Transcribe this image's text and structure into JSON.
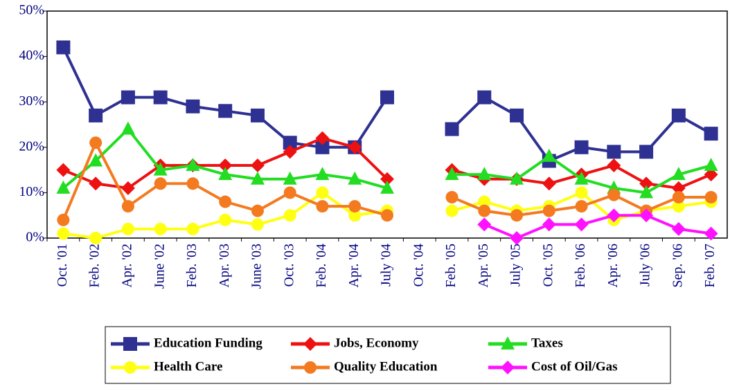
{
  "chart_data": {
    "type": "line",
    "categories": [
      "Oct. '01",
      "Feb. '02",
      "Apr. '02",
      "June '02",
      "Feb. '03",
      "Apr. '03",
      "June '03",
      "Oct. '03",
      "Feb. '04",
      "Apr. '04",
      "July '04",
      "Oct. '04",
      "Feb. '05",
      "Apr. '05",
      "July '05",
      "Oct. '05",
      "Feb. '06",
      "Apr. '06",
      "July '06",
      "Sep. '06",
      "Feb. '07"
    ],
    "ylim": [
      0,
      50
    ],
    "yticks": [
      {
        "value": 0,
        "label": "0%"
      },
      {
        "value": 10,
        "label": "10%"
      },
      {
        "value": 20,
        "label": "20%"
      },
      {
        "value": 30,
        "label": "30%"
      },
      {
        "value": 40,
        "label": "40%"
      },
      {
        "value": 50,
        "label": "50%"
      }
    ],
    "legend": "bottom",
    "series": [
      {
        "name": "Education Funding",
        "color": "#2e3192",
        "marker": "square",
        "values": [
          42,
          27,
          31,
          31,
          29,
          28,
          27,
          21,
          20,
          20,
          31,
          null,
          24,
          31,
          27,
          17,
          20,
          19,
          19,
          27,
          23
        ]
      },
      {
        "name": "Jobs, Economy",
        "color": "#ee1111",
        "marker": "diamond",
        "values": [
          15,
          12,
          11,
          16,
          16,
          16,
          16,
          19,
          22,
          20,
          13,
          null,
          15,
          13,
          13,
          12,
          14,
          16,
          12,
          11,
          14
        ]
      },
      {
        "name": "Taxes",
        "color": "#22dd22",
        "marker": "triangle",
        "values": [
          11,
          17,
          24,
          15,
          16,
          14,
          13,
          13,
          14,
          13,
          11,
          null,
          14,
          14,
          13,
          18,
          13,
          11,
          10,
          14,
          16
        ]
      },
      {
        "name": "Health Care",
        "color": "#ffff11",
        "marker": "circle",
        "values": [
          1,
          0,
          2,
          2,
          2,
          4,
          3,
          5,
          10,
          5,
          6,
          null,
          6,
          8,
          6,
          7,
          10,
          4,
          6,
          7,
          8
        ]
      },
      {
        "name": "Quality Education",
        "color": "#f47a20",
        "marker": "circle",
        "values": [
          4,
          21,
          7,
          12,
          12,
          8,
          6,
          10,
          7,
          7,
          5,
          null,
          9,
          6,
          5,
          6,
          7,
          9.5,
          6,
          9,
          9
        ]
      },
      {
        "name": "Cost of Oil/Gas",
        "color": "#ff11ff",
        "marker": "diamond",
        "values": [
          null,
          null,
          null,
          null,
          null,
          null,
          null,
          null,
          null,
          null,
          null,
          null,
          null,
          3,
          0,
          3,
          3,
          5,
          5,
          2,
          1
        ]
      }
    ]
  }
}
